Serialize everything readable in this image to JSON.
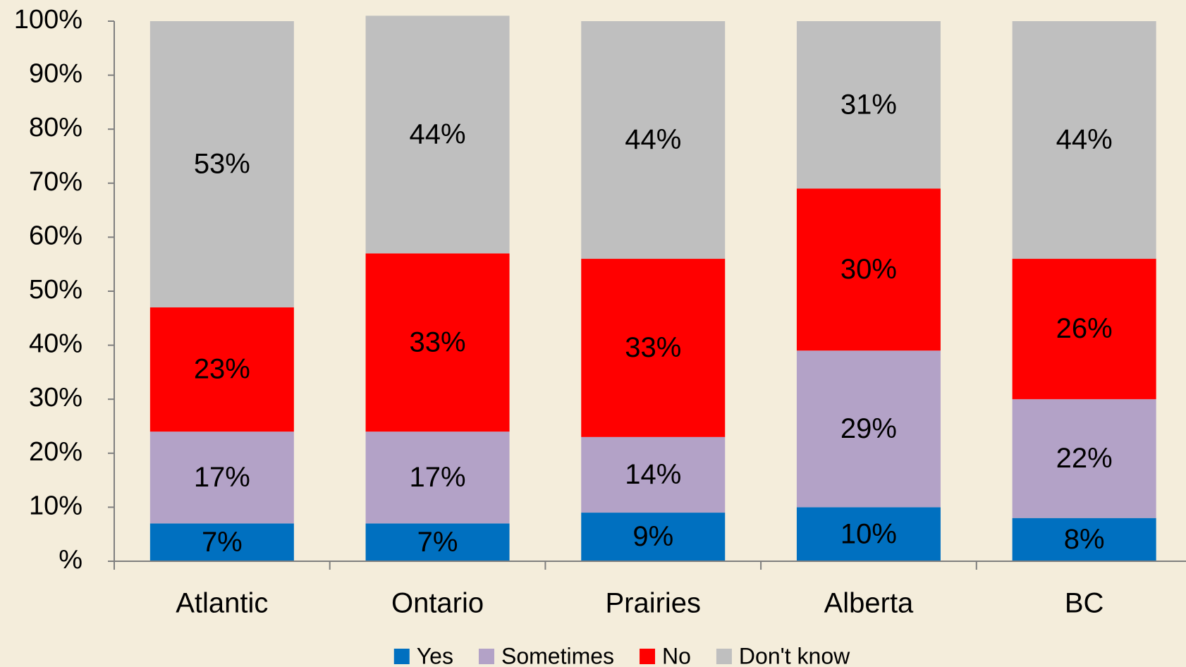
{
  "chart_data": {
    "type": "stacked_bar",
    "categories": [
      "Atlantic",
      "Ontario",
      "Prairies",
      "Alberta",
      "BC"
    ],
    "series": [
      {
        "name": "Yes",
        "color": "#0070c0",
        "values": [
          7,
          7,
          9,
          10,
          8
        ],
        "value_labels": [
          "7%",
          "7%",
          "9%",
          "10%",
          "8%"
        ]
      },
      {
        "name": "Sometimes",
        "color": "#b3a2c7",
        "values": [
          17,
          17,
          14,
          29,
          22
        ],
        "value_labels": [
          "17%",
          "17%",
          "14%",
          "29%",
          "22%"
        ]
      },
      {
        "name": "No",
        "color": "#ff0000",
        "values": [
          23,
          33,
          33,
          30,
          26
        ],
        "value_labels": [
          "23%",
          "33%",
          "33%",
          "30%",
          "26%"
        ]
      },
      {
        "name": "Don't know",
        "color": "#bfbfbf",
        "values": [
          53,
          44,
          44,
          31,
          44
        ],
        "value_labels": [
          "53%",
          "44%",
          "44%",
          "31%",
          "44%"
        ]
      }
    ],
    "ylim": [
      0,
      100
    ],
    "yticks": [
      {
        "value": 0,
        "label": "%"
      },
      {
        "value": 10,
        "label": "10%"
      },
      {
        "value": 20,
        "label": "20%"
      },
      {
        "value": 30,
        "label": "30%"
      },
      {
        "value": 40,
        "label": "40%"
      },
      {
        "value": 50,
        "label": "50%"
      },
      {
        "value": 60,
        "label": "60%"
      },
      {
        "value": 70,
        "label": "70%"
      },
      {
        "value": 80,
        "label": "80%"
      },
      {
        "value": 90,
        "label": "90%"
      },
      {
        "value": 100,
        "label": "100%"
      }
    ],
    "legend": "bottom"
  }
}
